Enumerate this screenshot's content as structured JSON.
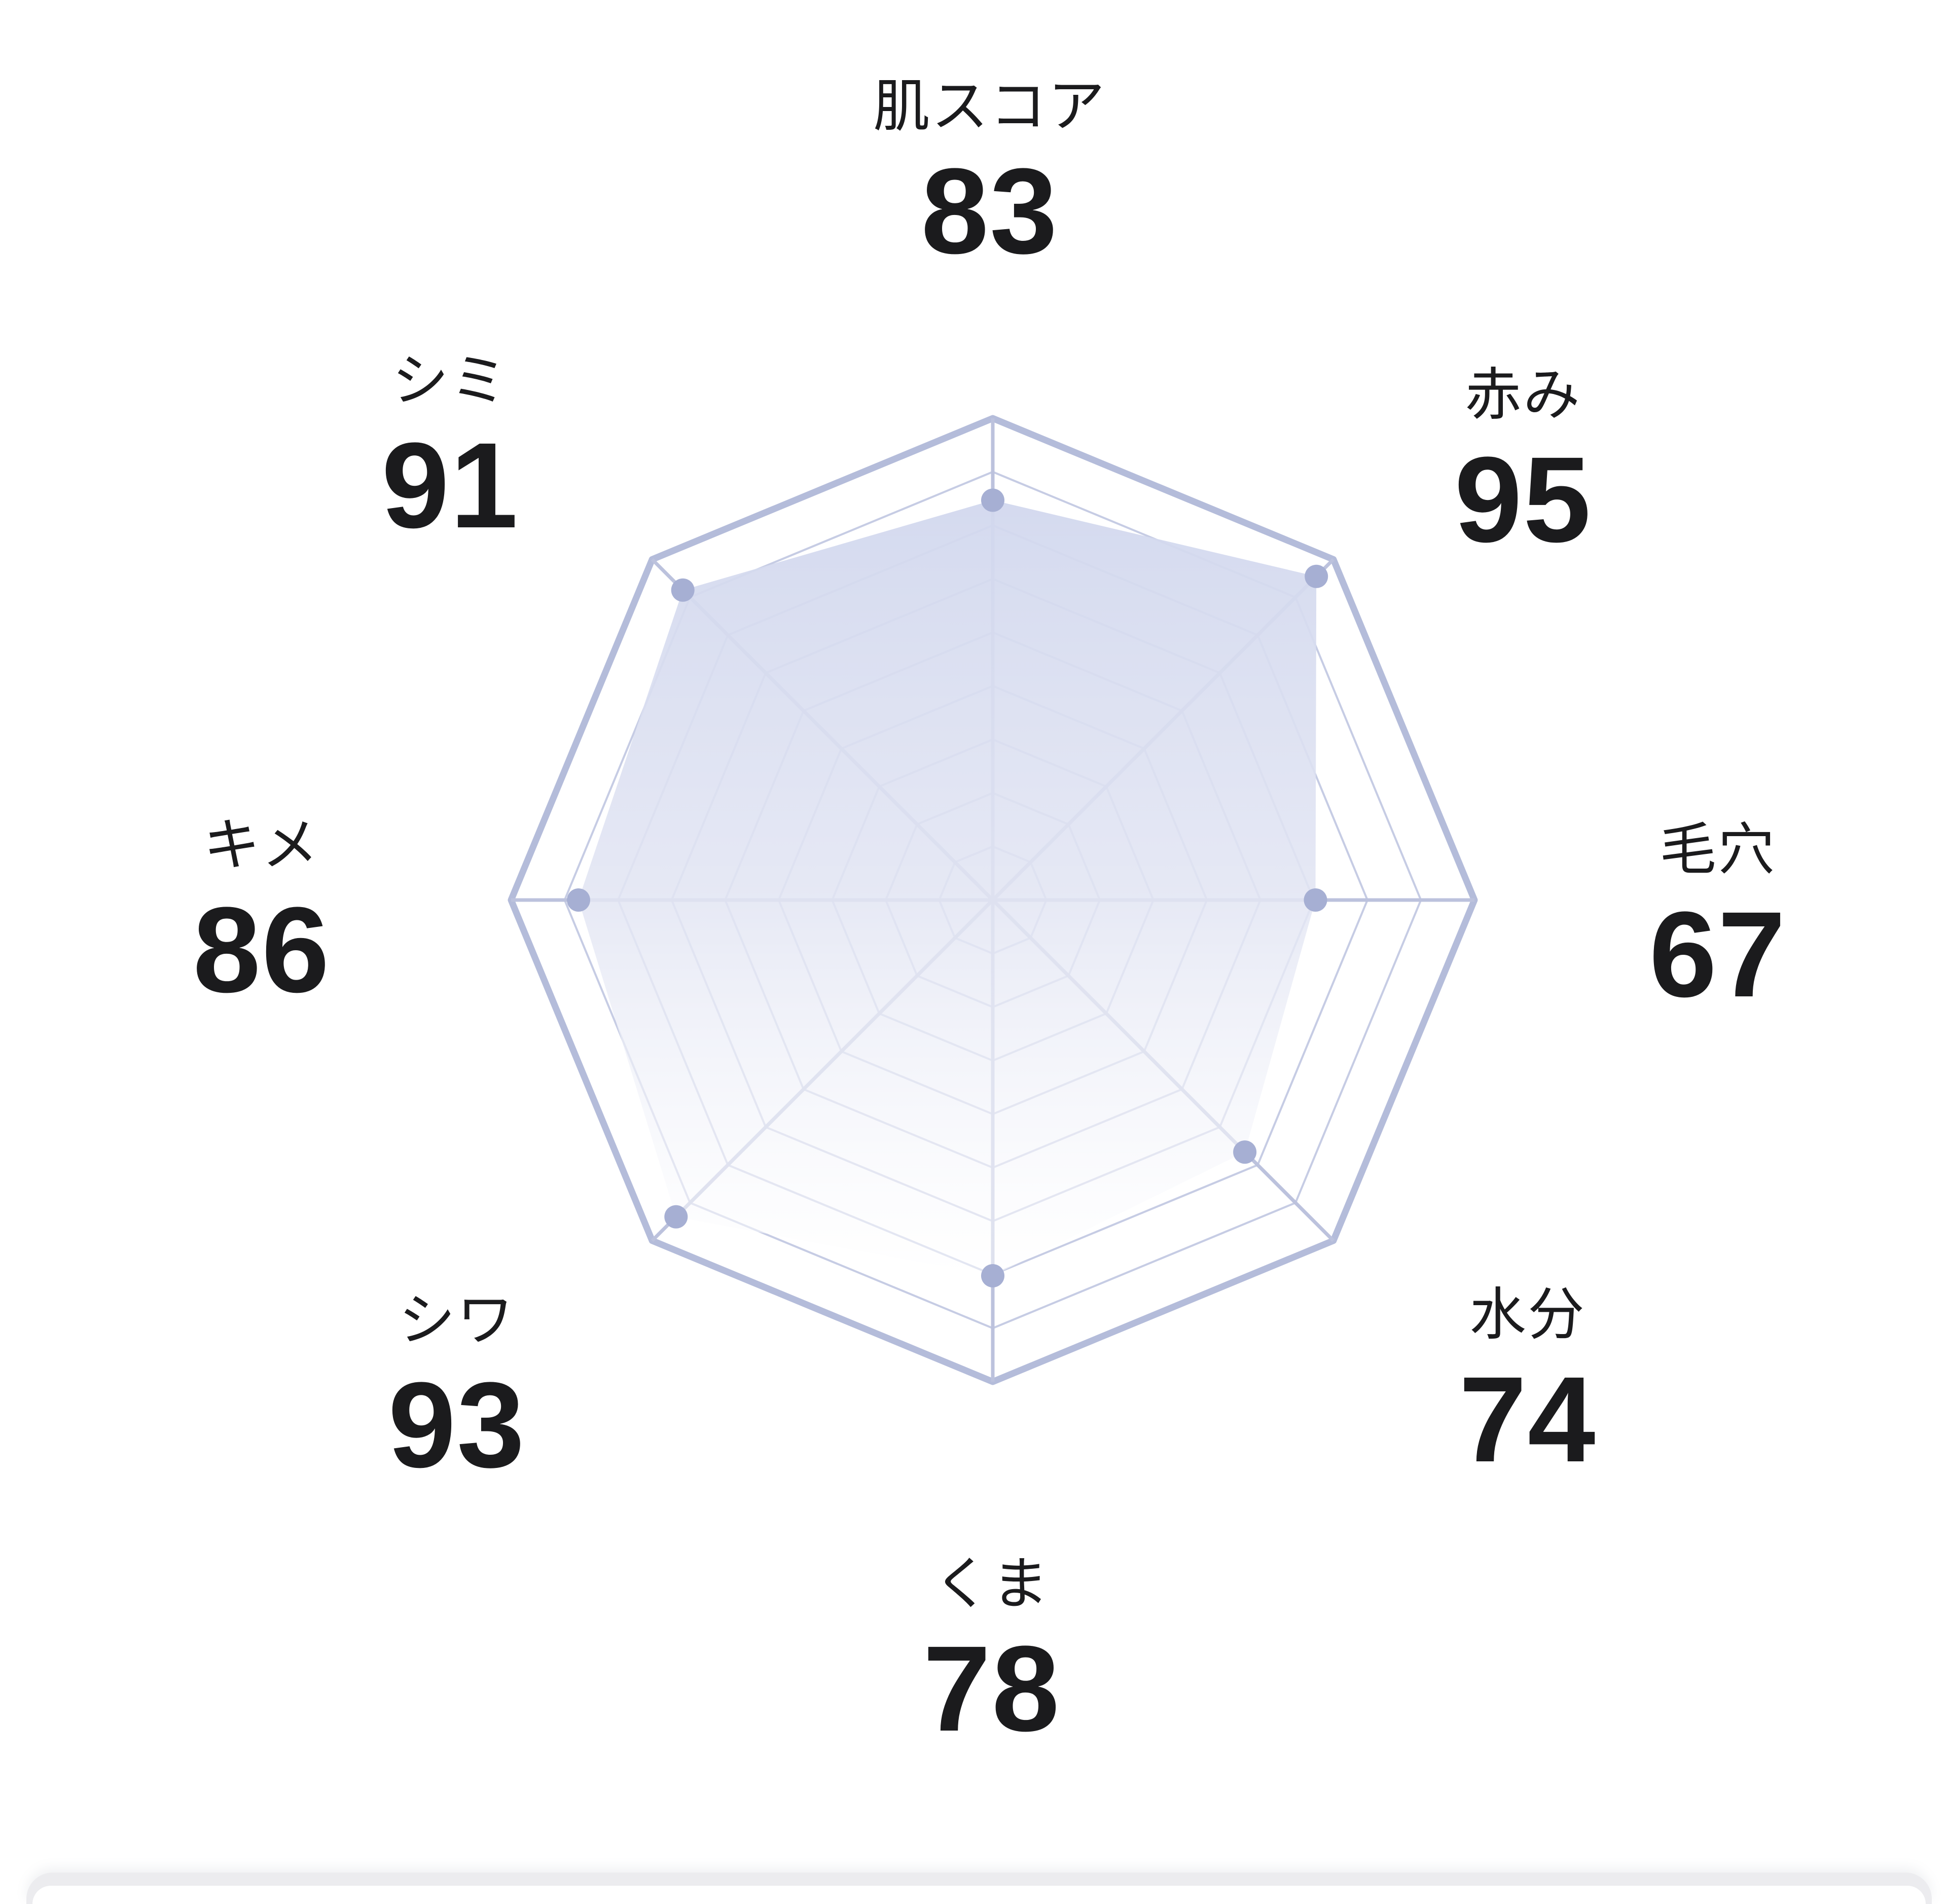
{
  "page": {
    "background_color": "#ffffff"
  },
  "chart_data": {
    "type": "radar",
    "title": "",
    "axes": [
      {
        "label": "肌スコア",
        "value": 83
      },
      {
        "label": "赤み",
        "value": 95
      },
      {
        "label": "毛穴",
        "value": 67
      },
      {
        "label": "水分",
        "value": 74
      },
      {
        "label": "くま",
        "value": 78
      },
      {
        "label": "シワ",
        "value": 93
      },
      {
        "label": "キメ",
        "value": 86
      },
      {
        "label": "シミ",
        "value": 91
      }
    ],
    "scale": {
      "min": 0,
      "max": 100,
      "rings": 9
    },
    "layout": {
      "start_angle_deg": -90,
      "direction": "clockwise",
      "grid": "spiderweb",
      "legend": "none"
    },
    "colors": {
      "grid": "#c6cce4",
      "spoke": "#bcc2dd",
      "ring_outer": "#b4bcda",
      "dot": "#a6afd3",
      "fill_top": "#d2d8ee",
      "fill_mid": "#e2e5f3",
      "fill_bottom": "#ffffff",
      "label_text": "#1b1b1d"
    }
  },
  "bottom_sheet": {
    "visible": true
  }
}
